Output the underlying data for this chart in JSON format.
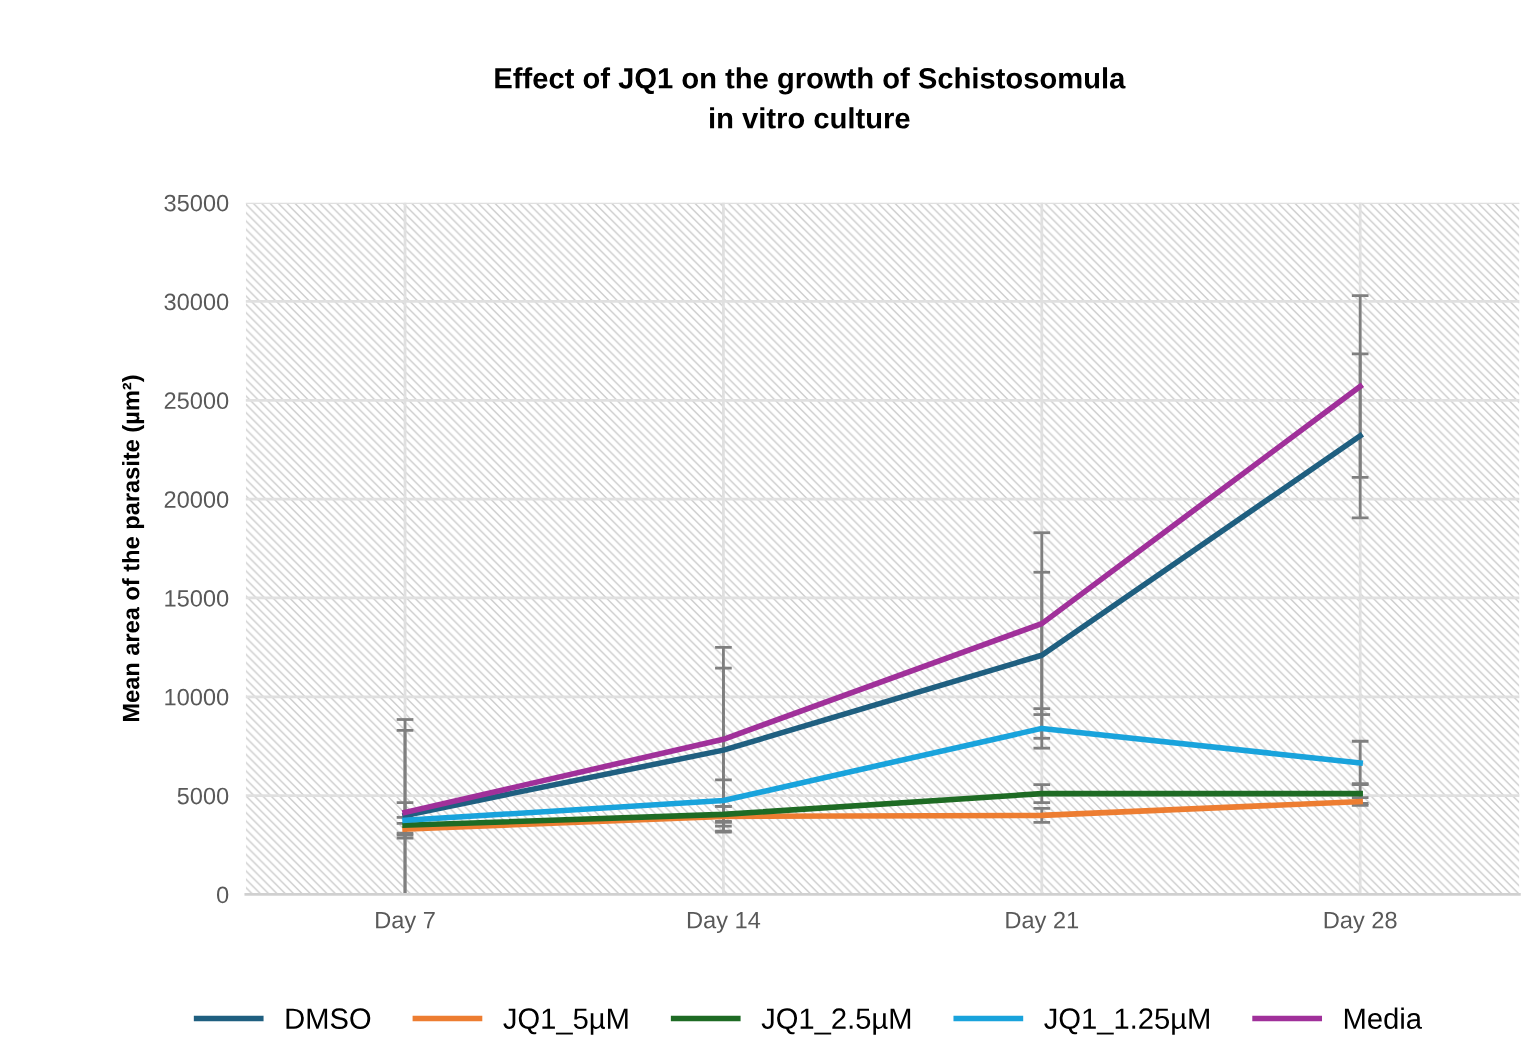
{
  "chart_data": {
    "type": "line",
    "title": "Effect of JQ1 on the growth of Schistosomula\nin vitro culture",
    "ylabel": "Mean area of the parasite (µm²)",
    "categories": [
      "Day 7",
      "Day 14",
      "Day 21",
      "Day 28"
    ],
    "series": [
      {
        "name": "DMSO",
        "color": "#1f5f80",
        "values": [
          4000,
          7300,
          12100,
          23200
        ],
        "errors": [
          [
            0,
            8300
          ],
          4150,
          4200,
          4150
        ]
      },
      {
        "name": "JQ1_5µM",
        "color": "#ed7d31",
        "values": [
          3300,
          3950,
          4000,
          4700
        ],
        "errors": [
          300,
          500,
          350,
          200
        ]
      },
      {
        "name": "JQ1_2.5µM",
        "color": "#1e6b24",
        "values": [
          3500,
          4050,
          5100,
          5100
        ],
        "errors": [
          400,
          400,
          450,
          500
        ]
      },
      {
        "name": "JQ1_1.25µM",
        "color": "#19a3dc",
        "values": [
          3750,
          4750,
          8400,
          6650
        ],
        "errors": [
          900,
          1050,
          1000,
          1100
        ]
      },
      {
        "name": "Media",
        "color": "#a0309a",
        "values": [
          4150,
          7850,
          13700,
          25700
        ],
        "errors": [
          [
            0,
            8850
          ],
          4650,
          4600,
          4600
        ]
      }
    ],
    "ylim": [
      0,
      35000
    ],
    "yticks": [
      0,
      5000,
      10000,
      15000,
      20000,
      25000,
      30000,
      35000
    ],
    "grid": true,
    "legend": "bottom",
    "marker": "none",
    "line_style": "solid"
  }
}
